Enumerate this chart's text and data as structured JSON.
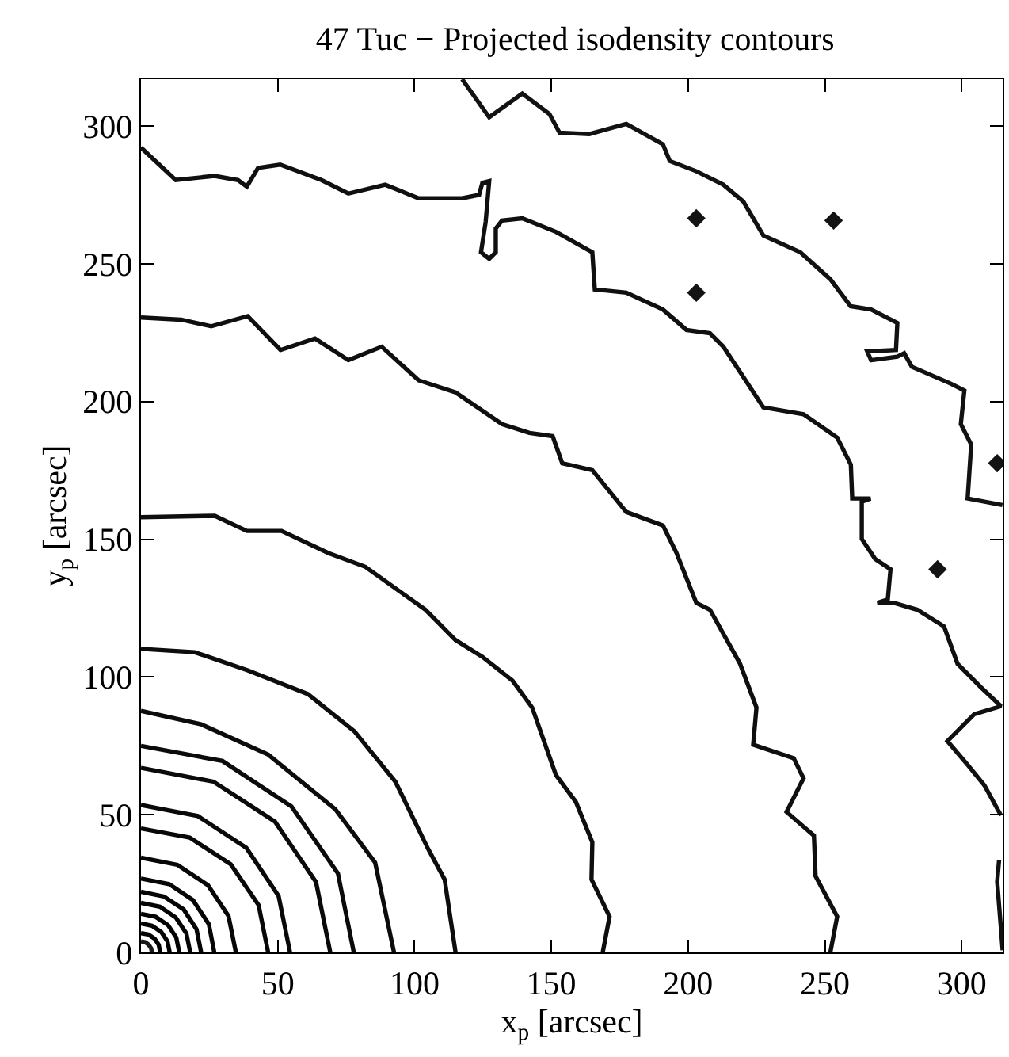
{
  "chart_data": {
    "type": "line",
    "title": "47 Tuc − Projected isodensity contours",
    "xlabel": "x$_{p}$ [arcsec]",
    "ylabel": "y$_{p}$ [arcsec]",
    "xlim": [
      0,
      315
    ],
    "ylim": [
      0,
      317
    ],
    "xticks": [
      0,
      50,
      100,
      150,
      200,
      250,
      300
    ],
    "yticks": [
      0,
      50,
      100,
      150,
      200,
      250,
      300
    ],
    "grid": false,
    "marker": "none",
    "line_style": "solid",
    "series": [
      {
        "color": "#1a1a1a",
        "x": [
          4,
          3.7,
          2.8,
          1.5,
          0
        ],
        "values": [
          0,
          1.5,
          2.8,
          3.7,
          4
        ]
      },
      {
        "color": "#010101",
        "x": [
          7,
          6.5,
          5,
          2.7,
          0
        ],
        "values": [
          0,
          2.7,
          5,
          6.5,
          7
        ]
      },
      {
        "color": "#020202",
        "x": [
          10.5,
          9.7,
          7.4,
          4,
          0
        ],
        "values": [
          0,
          4,
          7.4,
          9.7,
          10.5
        ]
      },
      {
        "color": "#030303",
        "x": [
          14,
          12.9,
          9.9,
          5.4,
          0
        ],
        "values": [
          0,
          5.4,
          9.9,
          12.9,
          14
        ]
      },
      {
        "color": "#040404",
        "x": [
          18,
          16.6,
          12.7,
          6.9,
          0
        ],
        "values": [
          0,
          6.9,
          12.7,
          16.6,
          18
        ]
      },
      {
        "color": "#050505",
        "x": [
          22,
          20.3,
          15.6,
          8.4,
          0
        ],
        "values": [
          0,
          8.4,
          15.6,
          20.3,
          22
        ]
      },
      {
        "color": "#060606",
        "x": [
          26.8,
          24.8,
          19,
          10.3,
          0
        ],
        "values": [
          0,
          10.3,
          19,
          24.8,
          26.8
        ]
      },
      {
        "color": "#070707",
        "x": [
          34.7,
          32,
          24.5,
          13.3,
          0
        ],
        "values": [
          0,
          13.2,
          24.4,
          31.8,
          34.4
        ]
      },
      {
        "color": "#080808",
        "x": [
          46.5,
          43,
          32.8,
          17.8,
          0
        ],
        "values": [
          0,
          17.2,
          32,
          41.7,
          45
        ]
      },
      {
        "color": "#090909",
        "x": [
          54.5,
          50.3,
          38.5,
          20.8,
          0
        ],
        "values": [
          0,
          20.5,
          38,
          49.5,
          53.5
        ]
      },
      {
        "color": "#0a0a0a",
        "x": [
          69.2,
          64,
          49,
          26.5,
          0
        ],
        "values": [
          0,
          25.5,
          47.5,
          62,
          67
        ]
      },
      {
        "color": "#0b0b0b",
        "x": [
          77.8,
          72,
          55,
          29.8,
          0
        ],
        "values": [
          0,
          28.7,
          53,
          69.5,
          75
        ]
      },
      {
        "color": "#0c0c0c",
        "x": [
          92.5,
          85.6,
          71,
          46.5,
          22,
          0
        ],
        "values": [
          0,
          32.6,
          52,
          71.8,
          82.8,
          87.7
        ]
      },
      {
        "color": "#0d0d0d",
        "x": [
          115,
          111,
          105,
          93,
          78,
          61,
          39,
          19.6,
          0
        ],
        "values": [
          0,
          26.5,
          37.5,
          62,
          80.3,
          93.8,
          102.4,
          109,
          110.2
        ]
      },
      {
        "color": "#0e0e0e",
        "x": [
          168.8,
          171.3,
          164.7,
          165,
          159,
          151.7,
          143,
          135.8,
          124.8,
          115,
          104,
          95.4,
          82,
          68.5,
          51.4,
          38.7,
          27,
          0
        ],
        "values": [
          0,
          13,
          26.5,
          40,
          54.6,
          64.4,
          88.9,
          98.7,
          107.3,
          113.4,
          124.4,
          130.5,
          140,
          145,
          153,
          153,
          158.5,
          158
        ]
      },
      {
        "color": "#0f0f0f",
        "x": [
          252,
          254.5,
          246.6,
          246,
          236,
          242.2,
          238.6,
          223.8,
          225,
          219,
          208,
          203,
          195.7,
          190.8,
          177.4,
          165,
          154,
          150.5,
          142,
          132,
          115,
          101.5,
          88,
          75.8,
          63.6,
          51,
          39,
          25.7,
          14.7,
          0
        ],
        "values": [
          0,
          13,
          27.7,
          42.4,
          51,
          63.2,
          70.5,
          75.4,
          88.9,
          104.8,
          124.4,
          126.9,
          145.2,
          155,
          159.9,
          175.1,
          177.6,
          187.4,
          188.6,
          191.8,
          203.3,
          207.7,
          219.9,
          215,
          222.9,
          218.7,
          231,
          227.3,
          229.7,
          230.5
        ]
      },
      {
        "color": "#101010",
        "x": [
          0,
          12.7,
          26.9,
          35.5,
          38.7,
          42.8,
          50.9,
          66,
          75.8,
          89.3,
          101.5,
          117.4,
          123.6,
          124.8,
          127.3,
          126,
          124.3,
          127.3,
          129.7,
          129.7,
          132,
          139.4,
          151.7,
          165,
          165.9,
          177.4,
          190.8,
          199.4,
          208,
          212.9,
          220.2,
          227.5,
          242.2,
          254.5,
          259.5,
          260,
          266.7,
          263.5,
          263.5,
          268.4,
          274,
          273,
          269.2,
          275.3,
          283.8,
          293.6,
          298.5,
          307,
          314.4,
          304.6,
          294.8,
          302.2,
          308.3,
          314.4
        ],
        "values": [
          292.2,
          280.4,
          281.9,
          280.4,
          278,
          284.8,
          286,
          280.4,
          275.5,
          278.7,
          273.8,
          273.8,
          275,
          279.4,
          280,
          265.2,
          254.2,
          251.8,
          254.2,
          262.8,
          265.7,
          266.5,
          261.6,
          254.2,
          240.7,
          239.5,
          233.4,
          226,
          224.8,
          219.9,
          208.9,
          197.9,
          195.4,
          186.9,
          177.1,
          164.8,
          164.8,
          163.6,
          150.1,
          142.8,
          139.1,
          128.1,
          126.9,
          126.9,
          124.4,
          118.3,
          104.8,
          96.3,
          89.4,
          86.5,
          76.7,
          68.1,
          60.7,
          49.7
        ]
      },
      {
        "color": "#111111",
        "x": [
          313.7,
          313,
          315
        ],
        "values": [
          33.6,
          25.7,
          0.8
        ]
      },
      {
        "color": "#121212",
        "x": [
          117.4,
          127.3,
          139.4,
          149.3,
          153,
          163.9,
          177.4,
          190.8,
          193.3,
          203,
          212.9,
          220.2,
          227.5,
          241,
          252,
          259.4,
          266.9,
          276.5,
          276,
          265.5,
          266.9,
          276.5,
          279,
          281.8,
          296,
          301,
          299.7,
          303.5,
          302.2,
          314.9
        ],
        "values": [
          317,
          303.2,
          311.8,
          304.4,
          297.6,
          297.1,
          300.8,
          293.4,
          287.3,
          283.6,
          278.7,
          272.6,
          260.3,
          254.2,
          244.4,
          234.6,
          233.4,
          228.5,
          218.7,
          218.2,
          215,
          216.3,
          217.5,
          212.6,
          206.5,
          204,
          191.8,
          184.4,
          164.8,
          162.4
        ]
      },
      {
        "type": "scatter",
        "marker": "diamond",
        "color": "#131313",
        "x": [
          203,
          253.2,
          203,
          291.2,
          313
        ],
        "values": [
          266.5,
          265.7,
          239.5,
          139.1,
          177.6
        ]
      }
    ]
  }
}
